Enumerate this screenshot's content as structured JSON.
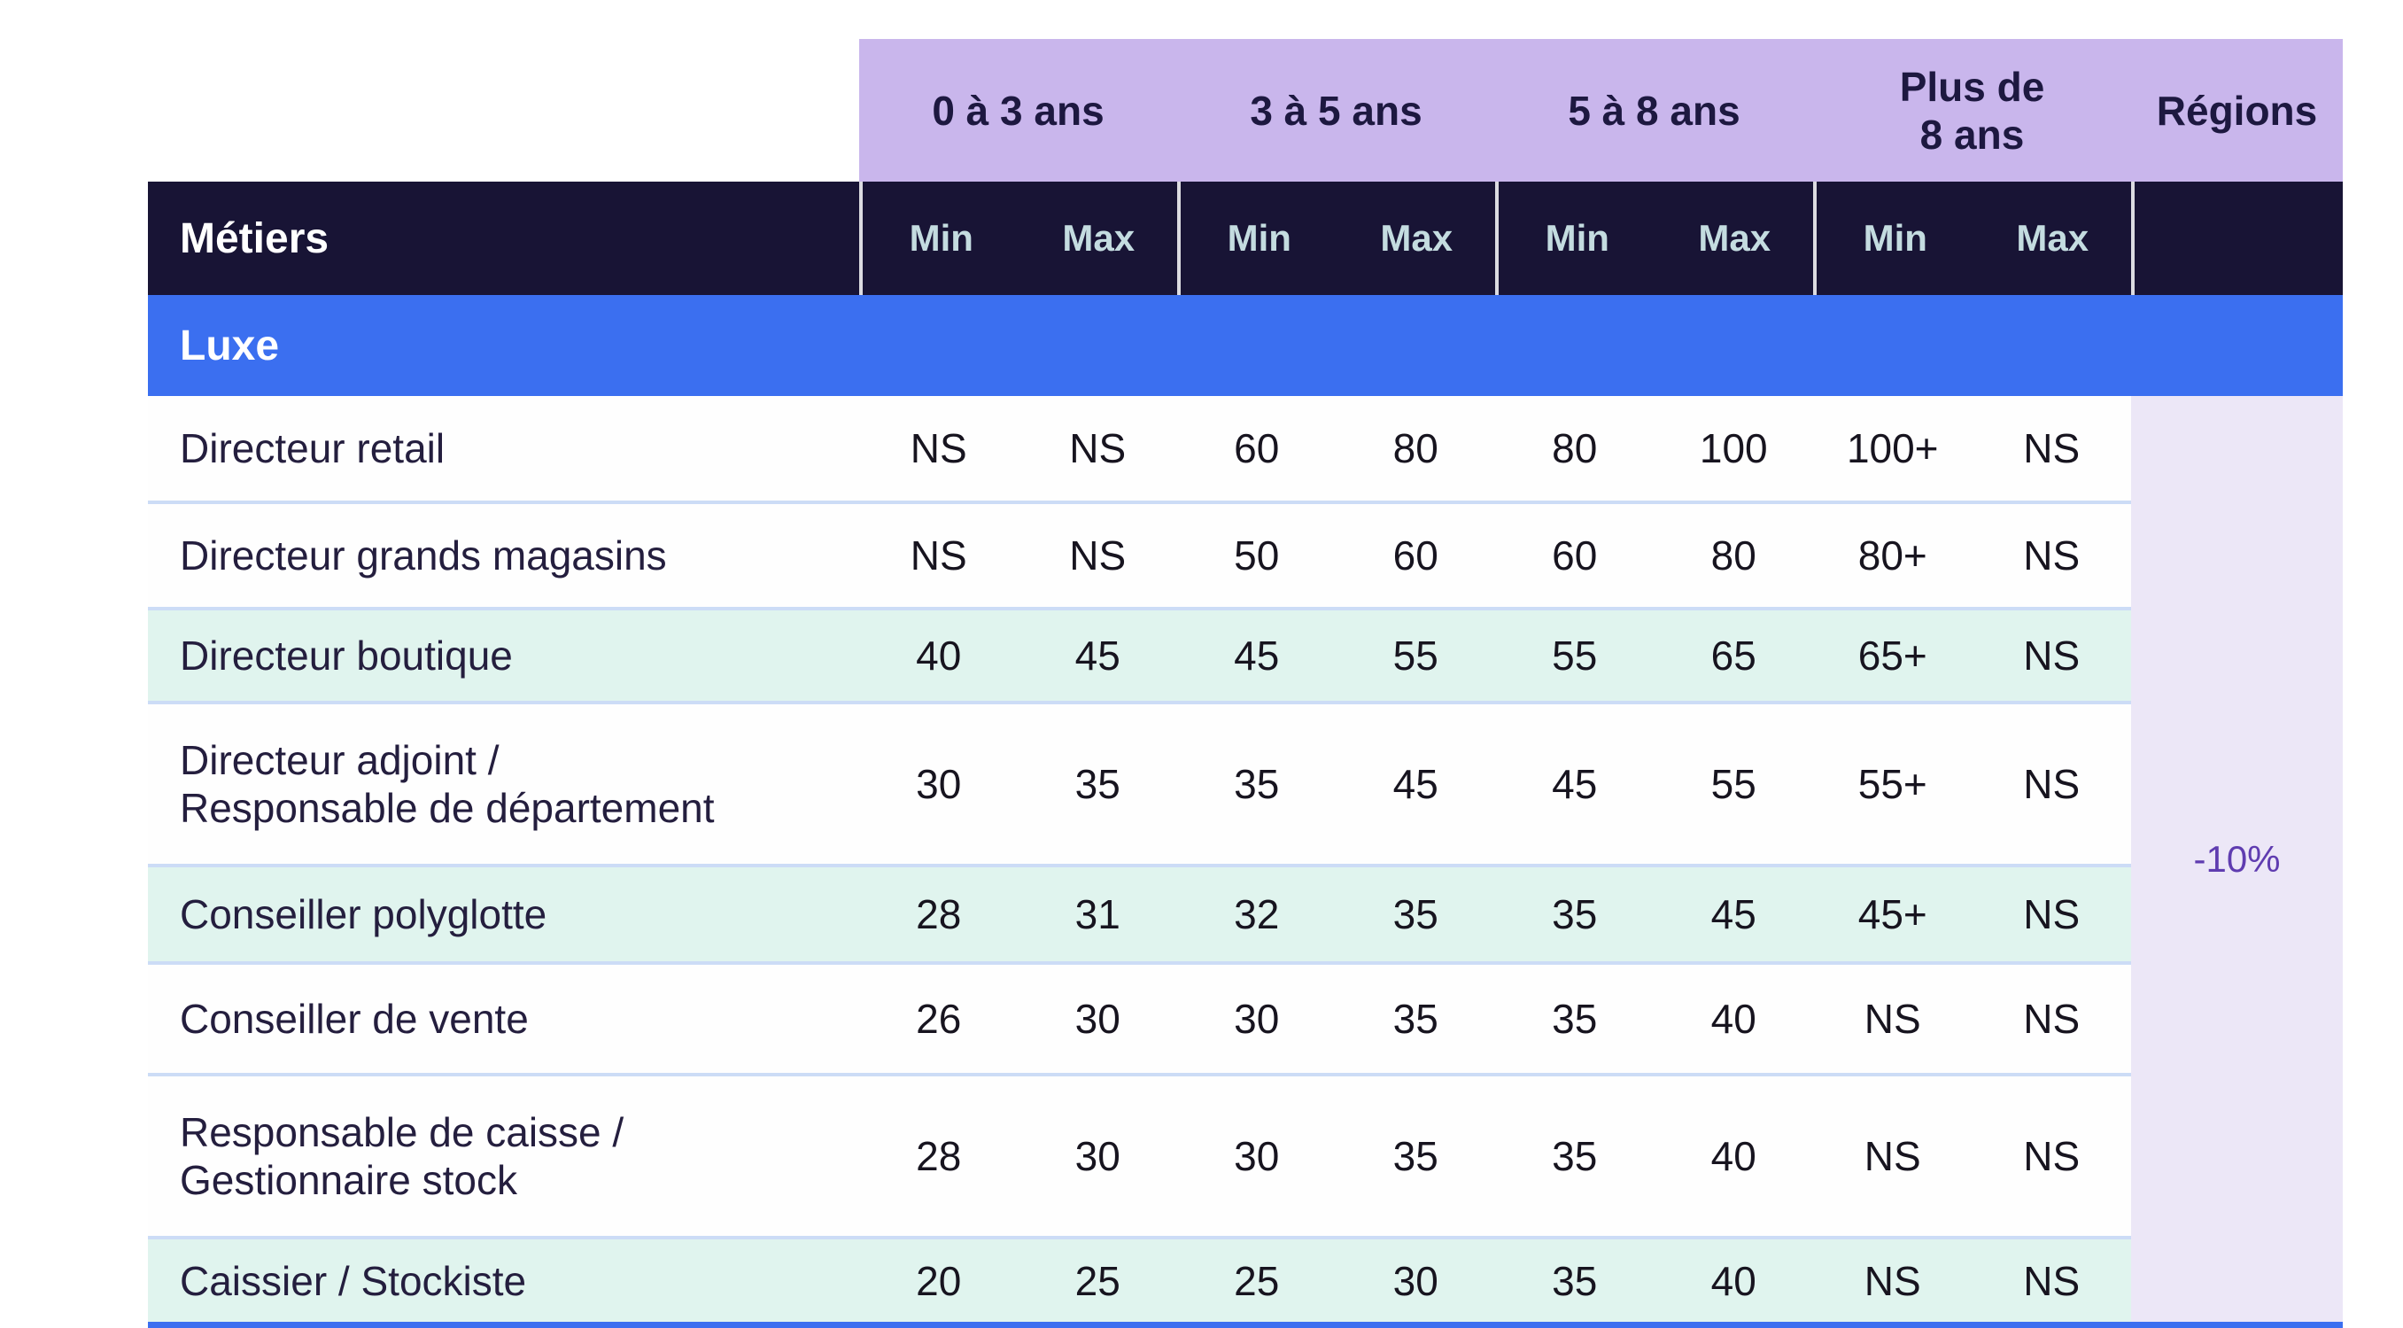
{
  "table": {
    "metiers_header": "Métiers",
    "experience_columns": [
      "0 à 3 ans",
      "3 à 5 ans",
      "5 à 8 ans",
      "Plus de\n8 ans"
    ],
    "regions_header": "Régions",
    "min_label": "Min",
    "max_label": "Max",
    "section": "Luxe",
    "regions_adjustment": "-10%",
    "rows": [
      {
        "label": "Directeur retail",
        "tinted": false,
        "values": [
          "NS",
          "NS",
          "60",
          "80",
          "80",
          "100",
          "100+",
          "NS"
        ]
      },
      {
        "label": "Directeur grands magasins",
        "tinted": false,
        "values": [
          "NS",
          "NS",
          "50",
          "60",
          "60",
          "80",
          "80+",
          "NS"
        ]
      },
      {
        "label": "Directeur boutique",
        "tinted": true,
        "values": [
          "40",
          "45",
          "45",
          "55",
          "55",
          "65",
          "65+",
          "NS"
        ]
      },
      {
        "label": "Directeur adjoint /\nResponsable de département",
        "tinted": false,
        "values": [
          "30",
          "35",
          "35",
          "45",
          "45",
          "55",
          "55+",
          "NS"
        ]
      },
      {
        "label": "Conseiller polyglotte",
        "tinted": true,
        "values": [
          "28",
          "31",
          "32",
          "35",
          "35",
          "45",
          "45+",
          "NS"
        ]
      },
      {
        "label": "Conseiller de vente",
        "tinted": false,
        "values": [
          "26",
          "30",
          "30",
          "35",
          "35",
          "40",
          "NS",
          "NS"
        ]
      },
      {
        "label": "Responsable de caisse /\nGestionnaire stock",
        "tinted": false,
        "values": [
          "28",
          "30",
          "30",
          "35",
          "35",
          "40",
          "NS",
          "NS"
        ]
      },
      {
        "label": "Caissier / Stockiste",
        "tinted": true,
        "values": [
          "20",
          "25",
          "25",
          "30",
          "35",
          "40",
          "NS",
          "NS"
        ]
      }
    ],
    "colors": {
      "experience_band": "#c9b6ec",
      "dark_header": "#181435",
      "section_blue": "#3b6ff0",
      "tinted_row": "#e0f4ee",
      "regions_column": "#ece7f7",
      "regions_text": "#5f3cb0",
      "row_divider": "#ccdcf6",
      "minmax_text": "#c4dce0"
    }
  }
}
